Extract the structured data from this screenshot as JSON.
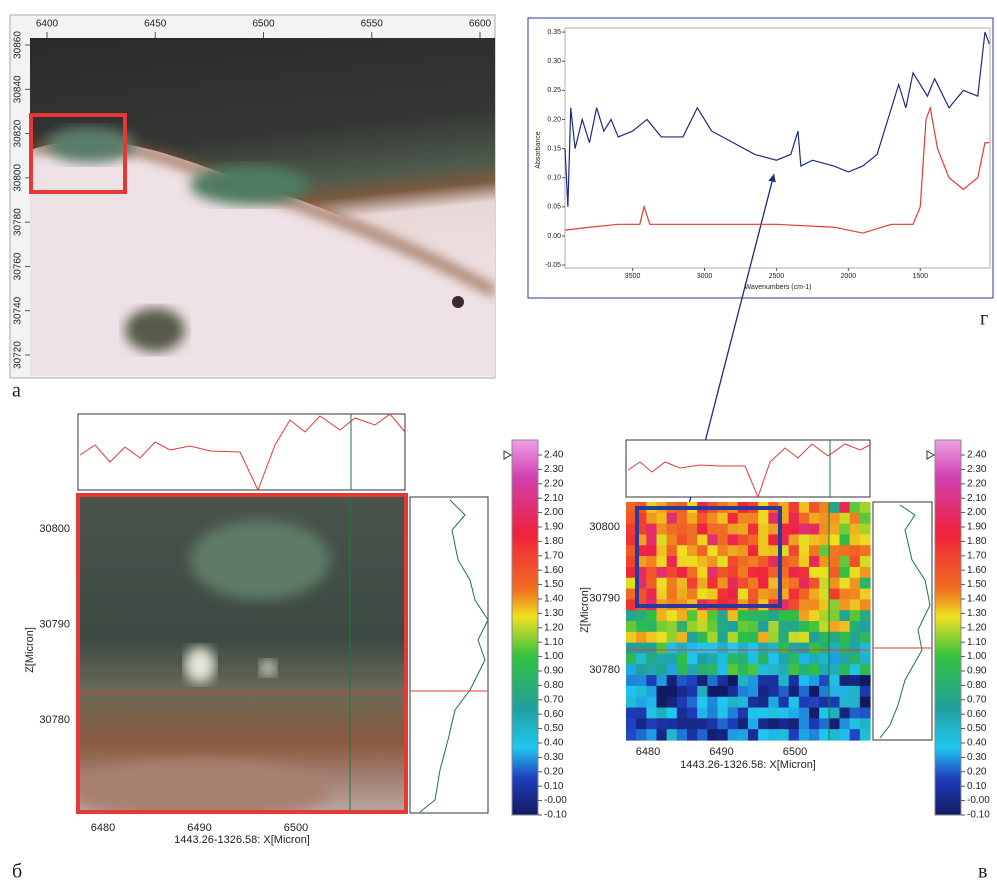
{
  "panel_a": {
    "label": "а",
    "x_ticks": [
      6400,
      6450,
      6500,
      6550,
      6600
    ],
    "y_ticks": [
      30860,
      30840,
      30820,
      30800,
      30780,
      30760,
      30740,
      30720
    ]
  },
  "panel_g": {
    "label": "г",
    "y_label": "Absorbance",
    "x_label": "Wavenumbers (cm-1)",
    "xlim": [
      3970,
      1015
    ],
    "ylim": [
      -0.055,
      0.357
    ],
    "xticks": [
      3500,
      3000,
      2500,
      2000,
      1500
    ],
    "yticks": [
      {
        "value": 0.35,
        "label": "0.35"
      },
      {
        "value": 0.3,
        "label": "0.30"
      },
      {
        "value": 0.25,
        "label": "0.25"
      },
      {
        "value": 0.2,
        "label": "0.20"
      },
      {
        "value": 0.15,
        "label": "0.15"
      },
      {
        "value": 0.1,
        "label": "0.10"
      },
      {
        "value": 0.05,
        "label": "0.05"
      },
      {
        "value": 0,
        "label": "0.00"
      },
      {
        "value": -0.05,
        "label": "-0.05"
      }
    ],
    "series": [
      {
        "color": "#1f2a80",
        "x": [
          3970,
          3950,
          3930,
          3900,
          3850,
          3800,
          3750,
          3700,
          3650,
          3600,
          3500,
          3400,
          3300,
          3150,
          3050,
          2950,
          2800,
          2650,
          2500,
          2400,
          2350,
          2330,
          2250,
          2100,
          2000,
          1900,
          1800,
          1700,
          1650,
          1600,
          1550,
          1450,
          1400,
          1300,
          1200,
          1100,
          1050,
          1020
        ],
        "values": [
          0.15,
          0.05,
          0.22,
          0.15,
          0.2,
          0.16,
          0.22,
          0.18,
          0.2,
          0.17,
          0.18,
          0.2,
          0.17,
          0.17,
          0.22,
          0.18,
          0.16,
          0.14,
          0.13,
          0.14,
          0.18,
          0.12,
          0.13,
          0.12,
          0.11,
          0.12,
          0.14,
          0.22,
          0.26,
          0.22,
          0.28,
          0.24,
          0.27,
          0.22,
          0.25,
          0.24,
          0.35,
          0.33
        ]
      },
      {
        "color": "#e53935",
        "x": [
          3970,
          3800,
          3600,
          3450,
          3420,
          3380,
          3000,
          2500,
          2100,
          1900,
          1700,
          1550,
          1500,
          1460,
          1430,
          1380,
          1300,
          1200,
          1100,
          1050,
          1020
        ],
        "values": [
          0.01,
          0.015,
          0.02,
          0.02,
          0.05,
          0.02,
          0.02,
          0.02,
          0.015,
          0.005,
          0.02,
          0.02,
          0.05,
          0.2,
          0.22,
          0.15,
          0.1,
          0.08,
          0.1,
          0.16,
          0.16
        ]
      }
    ]
  },
  "panel_b": {
    "label": "б",
    "x_label": "1443.26-1326.58: X[Micron]",
    "y_label": "Z[Micron]",
    "x_ticks": [
      6480,
      6490,
      6500
    ],
    "y_ticks": [
      30800,
      30790,
      30780
    ]
  },
  "panel_v": {
    "label": "в",
    "x_label": "1443.26-1326.58: X[Micron]",
    "y_label": "Z[Micron]",
    "x_ticks": [
      6480,
      6490,
      6500
    ],
    "y_ticks": [
      30800,
      30790,
      30780
    ]
  },
  "colorbar_ticks": [
    {
      "value": 2.4,
      "label": "2.40"
    },
    {
      "value": 2.3,
      "label": "2.30"
    },
    {
      "value": 2.2,
      "label": "2.20"
    },
    {
      "value": 2.1,
      "label": "2.10"
    },
    {
      "value": 2.0,
      "label": "2.00"
    },
    {
      "value": 1.9,
      "label": "1.90"
    },
    {
      "value": 1.8,
      "label": "1.80"
    },
    {
      "value": 1.7,
      "label": "1.70"
    },
    {
      "value": 1.6,
      "label": "1.60"
    },
    {
      "value": 1.5,
      "label": "1.50"
    },
    {
      "value": 1.4,
      "label": "1.40"
    },
    {
      "value": 1.3,
      "label": "1.30"
    },
    {
      "value": 1.2,
      "label": "1.20"
    },
    {
      "value": 1.1,
      "label": "1.10"
    },
    {
      "value": 1.0,
      "label": "1.00"
    },
    {
      "value": 0.9,
      "label": "0.90"
    },
    {
      "value": 0.8,
      "label": "0.80"
    },
    {
      "value": 0.7,
      "label": "0.70"
    },
    {
      "value": 0.6,
      "label": "0.60"
    },
    {
      "value": 0.5,
      "label": "0.50"
    },
    {
      "value": 0.4,
      "label": "0.40"
    },
    {
      "value": 0.3,
      "label": "0.30"
    },
    {
      "value": 0.2,
      "label": "0.20"
    },
    {
      "value": 0.1,
      "label": "0.10"
    },
    {
      "value": 0,
      "label": "-0.00"
    },
    {
      "value": -0.1,
      "label": "-0.10"
    }
  ]
}
